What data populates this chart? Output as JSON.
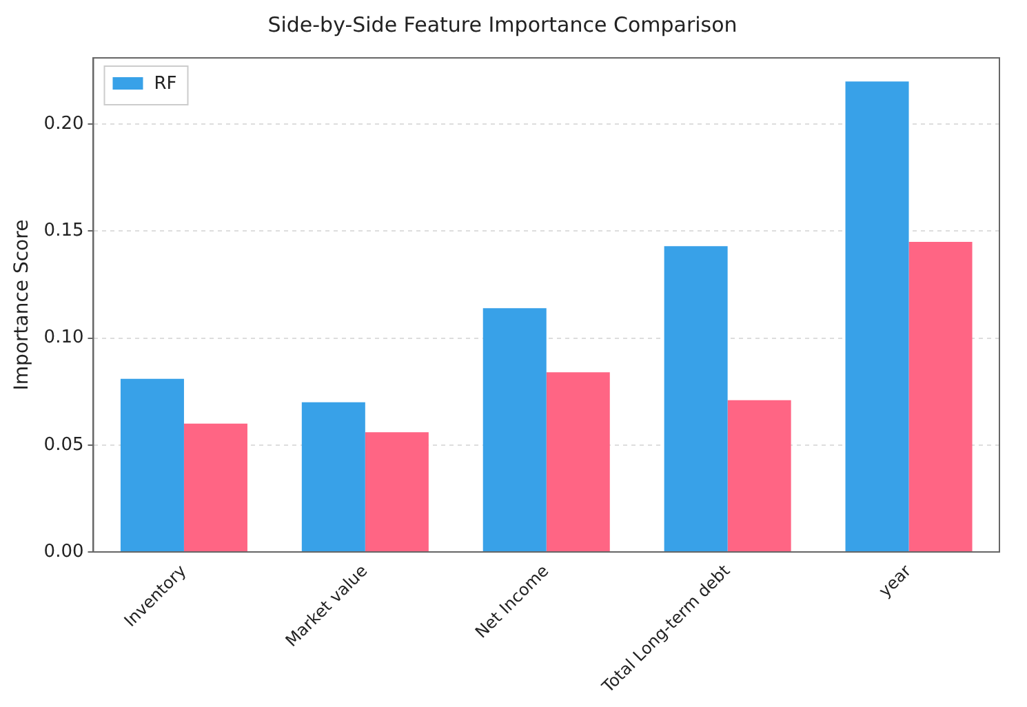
{
  "chart_data": {
    "type": "bar",
    "title": "Side-by-Side Feature Importance Comparison",
    "ylabel": "Importance Score",
    "categories": [
      "Inventory",
      "Market value",
      "Net Income",
      "Total Long-term debt",
      "year"
    ],
    "series": [
      {
        "name": "RF",
        "color": "#38a1e8",
        "values": [
          0.081,
          0.07,
          0.114,
          0.143,
          0.22
        ]
      },
      {
        "color": "#ff6584",
        "values": [
          0.06,
          0.056,
          0.084,
          0.071,
          0.145
        ]
      }
    ],
    "ylim": [
      0,
      0.231
    ],
    "yticks": [
      {
        "value": 0,
        "label": "0.00"
      },
      {
        "value": 0.05,
        "label": "0.05"
      },
      {
        "value": 0.1,
        "label": "0.10"
      },
      {
        "value": 0.15,
        "label": "0.15"
      },
      {
        "value": 0.2,
        "label": "0.20"
      }
    ],
    "grid": "y",
    "legend": "top left"
  }
}
